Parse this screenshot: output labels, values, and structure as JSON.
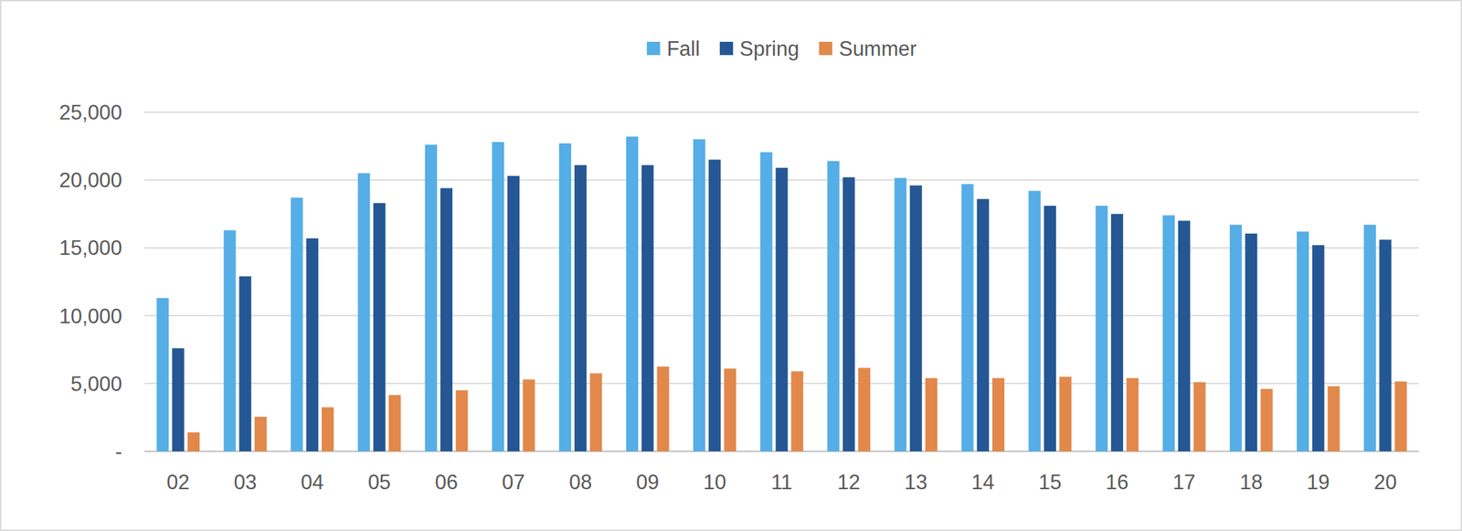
{
  "chart_data": {
    "type": "bar",
    "categories": [
      "02",
      "03",
      "04",
      "05",
      "06",
      "07",
      "08",
      "09",
      "10",
      "11",
      "12",
      "13",
      "14",
      "15",
      "16",
      "17",
      "18",
      "19",
      "20"
    ],
    "series": [
      {
        "name": "Fall",
        "color": "#55aee6",
        "values": [
          11300,
          16300,
          18700,
          20500,
          22600,
          22800,
          22700,
          23200,
          23000,
          22050,
          21400,
          20150,
          19700,
          19200,
          18100,
          17400,
          16700,
          16200,
          16700
        ]
      },
      {
        "name": "Spring",
        "color": "#245794",
        "values": [
          7600,
          12900,
          15700,
          18300,
          19400,
          20300,
          21100,
          21100,
          21500,
          20900,
          20200,
          19600,
          18600,
          18100,
          17500,
          17000,
          16050,
          15200,
          15600
        ]
      },
      {
        "name": "Summer",
        "color": "#e2884b",
        "values": [
          1400,
          2550,
          3250,
          4150,
          4500,
          5300,
          5750,
          6250,
          6100,
          5900,
          6150,
          5400,
          5400,
          5500,
          5400,
          5100,
          4600,
          4800,
          5150
        ]
      }
    ],
    "ylim": [
      0,
      25000
    ],
    "yticks": [
      {
        "value": 0,
        "label": "-"
      },
      {
        "value": 5000,
        "label": "5,000"
      },
      {
        "value": 10000,
        "label": "10,000"
      },
      {
        "value": 15000,
        "label": "15,000"
      },
      {
        "value": 20000,
        "label": "20,000"
      },
      {
        "value": 25000,
        "label": "25,000"
      }
    ],
    "grid": true,
    "legend": "top"
  }
}
